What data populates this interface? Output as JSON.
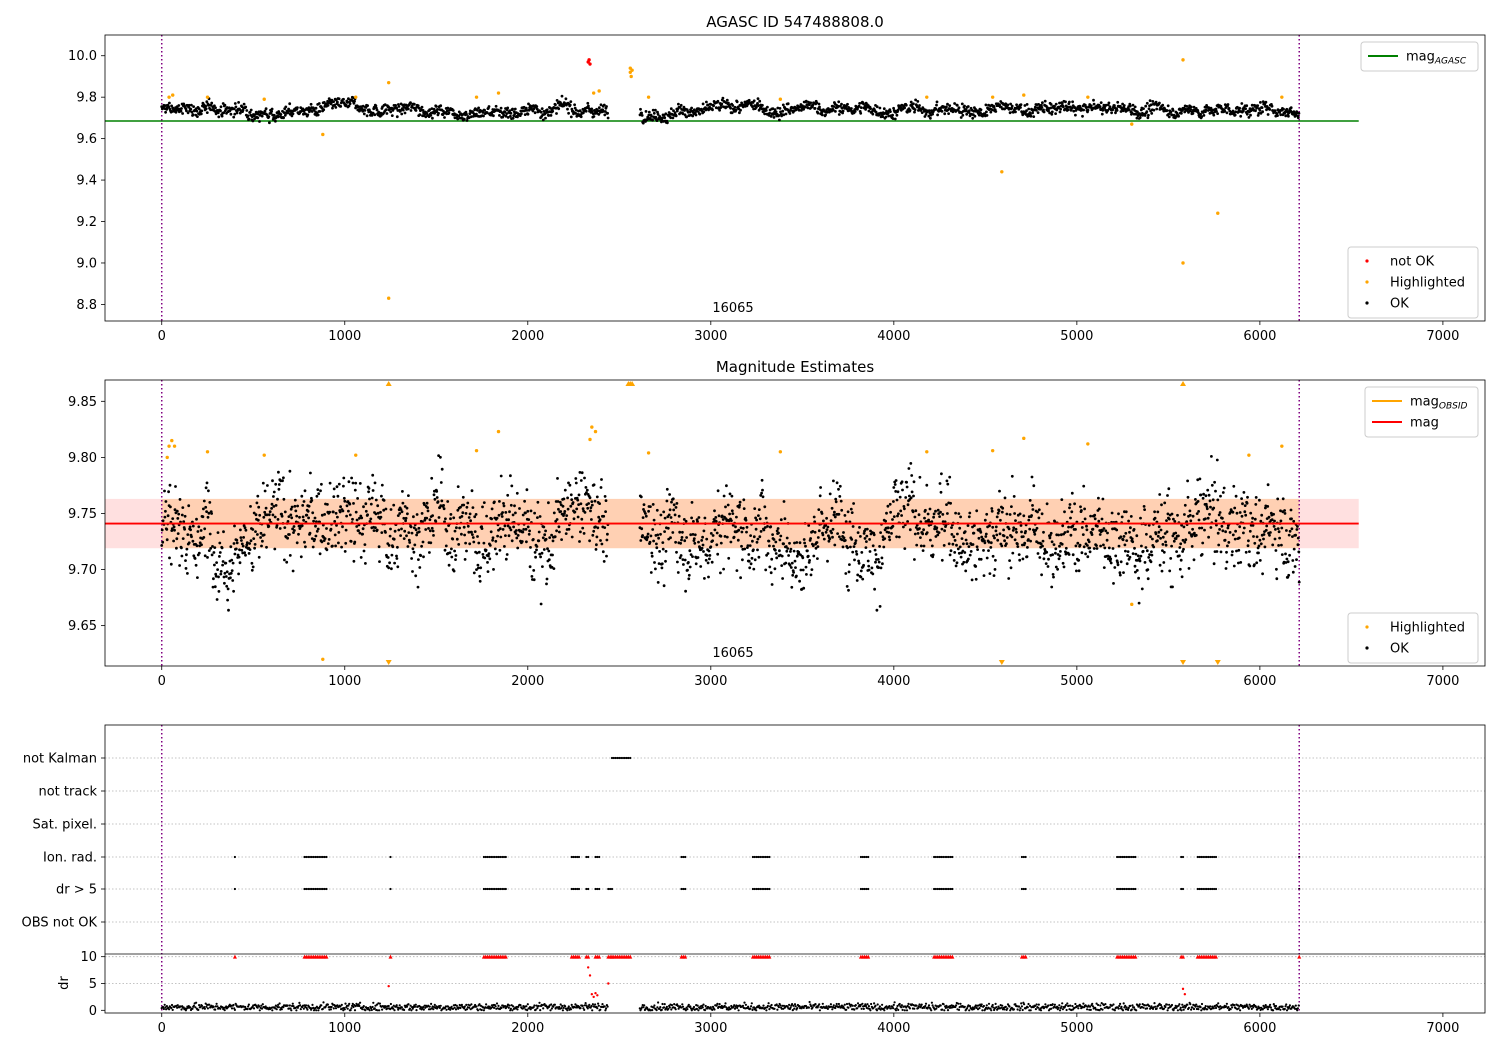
{
  "figure": {
    "panels": [
      {
        "id": "agasc",
        "title": "AGASC ID 547488808.0",
        "obsid_label": "16065"
      },
      {
        "id": "estimates",
        "title": "Magnitude Estimates",
        "obsid_label": "16065"
      },
      {
        "id": "flags",
        "title": ""
      }
    ]
  },
  "chart_data": [
    {
      "type": "scatter",
      "title": "AGASC ID 547488808.0",
      "xlim": [
        -310,
        7230
      ],
      "ylim": [
        8.72,
        10.1
      ],
      "xticks": [
        0,
        1000,
        2000,
        3000,
        4000,
        5000,
        6000,
        7000
      ],
      "yticks": [
        8.8,
        9.0,
        9.2,
        9.4,
        9.6,
        9.8,
        10.0
      ],
      "ytick_labels": [
        "8.8",
        "9.0",
        "9.2",
        "9.4",
        "9.6",
        "9.8",
        "10.0"
      ],
      "obsid_boundaries": [
        0,
        6215
      ],
      "obsid_label": "16065",
      "obsid_label_x": 3100,
      "reference_lines": [
        {
          "name": "mag_AGASC",
          "y": 9.685,
          "x_range": [
            -310,
            6540
          ],
          "color": "#008000"
        }
      ],
      "legends": [
        {
          "position": "top-right",
          "items": [
            {
              "label": "mag",
              "sub": "AGASC",
              "color": "#008000",
              "marker": "line"
            }
          ]
        },
        {
          "position": "bottom-right",
          "items": [
            {
              "label": "not OK",
              "color": "#ff0000",
              "marker": "dot"
            },
            {
              "label": "Highlighted",
              "color": "#ffa500",
              "marker": "dot"
            },
            {
              "label": "OK",
              "color": "#000000",
              "marker": "dot"
            }
          ]
        }
      ],
      "series": [
        {
          "name": "OK",
          "color": "#000000",
          "band": {
            "x_range": [
              0,
              6215
            ],
            "center": 9.74,
            "spread": 0.025,
            "gap": [
              2440,
              2610
            ]
          }
        },
        {
          "name": "Highlighted",
          "color": "#ffa500",
          "points": [
            [
              40,
              9.8
            ],
            [
              60,
              9.81
            ],
            [
              250,
              9.8
            ],
            [
              560,
              9.79
            ],
            [
              880,
              9.62
            ],
            [
              1060,
              9.8
            ],
            [
              1240,
              9.87
            ],
            [
              1240,
              8.83
            ],
            [
              1720,
              9.8
            ],
            [
              1840,
              9.82
            ],
            [
              2360,
              9.82
            ],
            [
              2390,
              9.83
            ],
            [
              2560,
              9.94
            ],
            [
              2560,
              9.92
            ],
            [
              2565,
              9.9
            ],
            [
              2570,
              9.93
            ],
            [
              2660,
              9.8
            ],
            [
              3380,
              9.79
            ],
            [
              4180,
              9.8
            ],
            [
              4540,
              9.8
            ],
            [
              4590,
              9.44
            ],
            [
              4710,
              9.81
            ],
            [
              5060,
              9.8
            ],
            [
              5300,
              9.67
            ],
            [
              5580,
              9.98
            ],
            [
              5580,
              9.0
            ],
            [
              5770,
              9.24
            ],
            [
              6120,
              9.8
            ]
          ]
        },
        {
          "name": "not OK",
          "color": "#ff0000",
          "points": [
            [
              2330,
              9.97
            ],
            [
              2335,
              9.98
            ],
            [
              2340,
              9.96
            ]
          ]
        }
      ]
    },
    {
      "type": "scatter",
      "title": "Magnitude Estimates",
      "xlim": [
        -310,
        7230
      ],
      "ylim": [
        9.614,
        9.869
      ],
      "xticks": [
        0,
        1000,
        2000,
        3000,
        4000,
        5000,
        6000,
        7000
      ],
      "yticks": [
        9.65,
        9.7,
        9.75,
        9.8,
        9.85
      ],
      "ytick_labels": [
        "9.65",
        "9.70",
        "9.75",
        "9.80",
        "9.85"
      ],
      "obsid_boundaries": [
        0,
        6215
      ],
      "obsid_label": "16065",
      "obsid_label_x": 3100,
      "reference_lines": [
        {
          "name": "mag_OBSID",
          "y": 9.741,
          "x_range": [
            0,
            6215
          ],
          "color": "#ffa500"
        },
        {
          "name": "mag",
          "y": 9.741,
          "x_range": [
            -310,
            6540
          ],
          "color": "#ff0000"
        }
      ],
      "bands": [
        {
          "name": "mag_OBSID band",
          "y_range": [
            9.719,
            9.763
          ],
          "x_range": [
            0,
            6215
          ],
          "color": "#ffa500",
          "opacity": 0.2
        },
        {
          "name": "mag band",
          "y_range": [
            9.719,
            9.763
          ],
          "x_range": [
            -310,
            6540
          ],
          "color": "#ff0000",
          "opacity": 0.12
        }
      ],
      "legends": [
        {
          "position": "top-right",
          "items": [
            {
              "label": "mag",
              "sub": "OBSID",
              "color": "#ffa500",
              "marker": "line"
            },
            {
              "label": "mag",
              "sub": "",
              "color": "#ff0000",
              "marker": "line"
            }
          ]
        },
        {
          "position": "bottom-right",
          "items": [
            {
              "label": "Highlighted",
              "color": "#ffa500",
              "marker": "dot"
            },
            {
              "label": "OK",
              "color": "#000000",
              "marker": "dot"
            }
          ]
        }
      ],
      "series": [
        {
          "name": "OK",
          "color": "#000000",
          "band": {
            "x_range": [
              0,
              6215
            ],
            "center": 9.74,
            "spread": 0.03,
            "gap": [
              2440,
              2610
            ]
          }
        },
        {
          "name": "Highlighted",
          "color": "#ffa500",
          "points": [
            [
              30,
              9.8
            ],
            [
              40,
              9.81
            ],
            [
              55,
              9.815
            ],
            [
              70,
              9.81
            ],
            [
              250,
              9.805
            ],
            [
              560,
              9.802
            ],
            [
              880,
              9.62
            ],
            [
              1060,
              9.802
            ],
            [
              1720,
              9.806
            ],
            [
              1840,
              9.823
            ],
            [
              2340,
              9.816
            ],
            [
              2350,
              9.827
            ],
            [
              2370,
              9.823
            ],
            [
              2660,
              9.804
            ],
            [
              3380,
              9.805
            ],
            [
              4180,
              9.805
            ],
            [
              4540,
              9.806
            ],
            [
              4710,
              9.817
            ],
            [
              5060,
              9.812
            ],
            [
              5300,
              9.669
            ],
            [
              5940,
              9.802
            ],
            [
              6120,
              9.81
            ]
          ]
        },
        {
          "name": "Highlighted (above range)",
          "color": "#ffa500",
          "points": [
            [
              1240,
              9.869
            ],
            [
              2550,
              9.869
            ],
            [
              2560,
              9.869
            ],
            [
              2570,
              9.869
            ],
            [
              5580,
              9.869
            ]
          ]
        },
        {
          "name": "Highlighted (below range)",
          "color": "#ffa500",
          "points": [
            [
              1240,
              9.614
            ],
            [
              4590,
              9.614
            ],
            [
              5580,
              9.614
            ],
            [
              5770,
              9.614
            ]
          ]
        }
      ]
    },
    {
      "type": "scatter",
      "title": "",
      "xlim": [
        -310,
        7230
      ],
      "xticks": [
        0,
        1000,
        2000,
        3000,
        4000,
        5000,
        6000,
        7000
      ],
      "obsid_boundaries": [
        0,
        6215
      ],
      "flag_labels": [
        "not Kalman",
        "not track",
        "Sat. pixel.",
        "Ion. rad.",
        "dr > 5",
        "OBS not OK"
      ],
      "flags": {
        "not Kalman": [
          [
            2460,
            2560
          ]
        ],
        "Ion. rad.": [
          [
            400,
            405
          ],
          [
            780,
            900
          ],
          [
            1250,
            1255
          ],
          [
            1760,
            1880
          ],
          [
            2240,
            2280
          ],
          [
            2320,
            2330
          ],
          [
            2370,
            2390
          ],
          [
            2840,
            2860
          ],
          [
            3230,
            3320
          ],
          [
            3820,
            3860
          ],
          [
            4220,
            4320
          ],
          [
            4700,
            4720
          ],
          [
            5220,
            5320
          ],
          [
            5570,
            5580
          ],
          [
            5660,
            5760
          ],
          [
            6215,
            6220
          ]
        ],
        "dr > 5": [
          [
            400,
            405
          ],
          [
            780,
            900
          ],
          [
            1250,
            1255
          ],
          [
            1760,
            1880
          ],
          [
            2240,
            2280
          ],
          [
            2320,
            2330
          ],
          [
            2370,
            2390
          ],
          [
            2440,
            2460
          ],
          [
            2840,
            2860
          ],
          [
            3230,
            3320
          ],
          [
            3820,
            3860
          ],
          [
            4220,
            4320
          ],
          [
            4700,
            4720
          ],
          [
            5220,
            5320
          ],
          [
            5570,
            5580
          ],
          [
            5660,
            5760
          ],
          [
            6215,
            6220
          ]
        ]
      },
      "dr": {
        "ylabel": "dr",
        "ylim": [
          -0.5,
          10.5
        ],
        "yticks": [
          0,
          5,
          10
        ],
        "capped_at": 10,
        "typical": 0.6,
        "x_range": [
          0,
          6215
        ],
        "gap": [
          2440,
          2610
        ],
        "spikes": [
          [
            1240,
            4.5
          ],
          [
            2330,
            8
          ],
          [
            2340,
            6.5
          ],
          [
            2350,
            3
          ],
          [
            2360,
            2.5
          ],
          [
            2370,
            3.2
          ],
          [
            2380,
            2.8
          ],
          [
            2440,
            5
          ],
          [
            5580,
            4
          ],
          [
            5590,
            3
          ]
        ]
      }
    }
  ]
}
